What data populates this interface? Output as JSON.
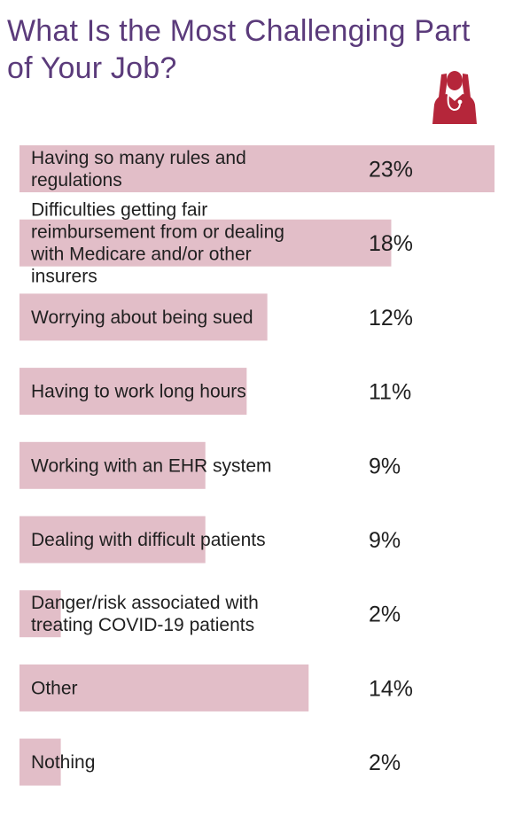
{
  "header": {
    "title_line1": "What Is the Most Challenging Part",
    "title_line2": "of Your Job?"
  },
  "icons": {
    "illustration": "stressed-doctor-icon"
  },
  "colors": {
    "bar": "#e2bec8",
    "title": "#5b3b7b",
    "icon": "#b5263a",
    "text": "#1f1f1f"
  },
  "chart_data": {
    "type": "bar",
    "orientation": "horizontal",
    "title": "What Is the Most Challenging Part of Your Job?",
    "categories": [
      [
        "Having so many rules and",
        "regulations"
      ],
      [
        "Difficulties getting fair",
        "reimbursement from or dealing",
        "with Medicare and/or other",
        "insurers"
      ],
      [
        "Worrying about being sued"
      ],
      [
        "Having to work long hours"
      ],
      [
        "Working with an EHR system"
      ],
      [
        "Dealing with difficult patients"
      ],
      [
        "Danger/risk associated with",
        "treating COVID-19 patients"
      ],
      [
        "Other"
      ],
      [
        "Nothing"
      ]
    ],
    "values": [
      23,
      18,
      12,
      11,
      9,
      9,
      2,
      14,
      2
    ],
    "value_labels": [
      "23%",
      "18%",
      "12%",
      "11%",
      "9%",
      "9%",
      "2%",
      "14%",
      "2%"
    ],
    "unit": "%",
    "xlim": [
      0,
      23
    ]
  }
}
